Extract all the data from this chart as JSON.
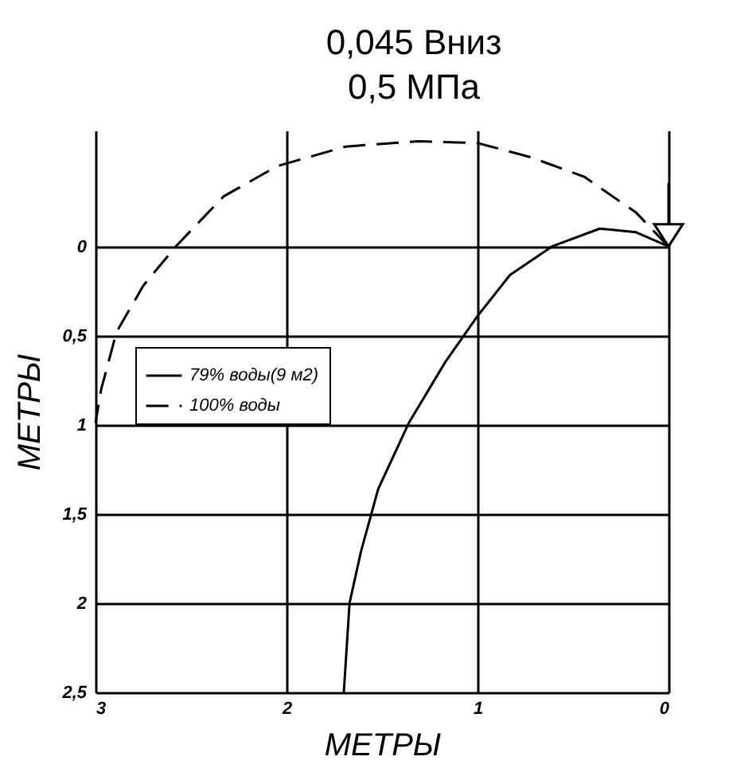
{
  "chart_data": {
    "type": "line",
    "title": "0,045 Вниз",
    "subtitle": "0,5 МПа",
    "xlabel": "МЕТРЫ",
    "ylabel": "МЕТРЫ",
    "xlim": [
      3,
      0
    ],
    "xticks": [
      3,
      2,
      1,
      0
    ],
    "ylim": [
      2.5,
      -0.65
    ],
    "yticks": [
      0,
      {
        "value": 0.5,
        "label": "0,5"
      },
      1,
      {
        "value": 1.5,
        "label": "1,5"
      },
      2,
      {
        "value": 2.5,
        "label": "2,5"
      }
    ],
    "grid": true,
    "legend": "top left",
    "marker": "none",
    "series": [
      {
        "name": "79% воды(9 м2)",
        "color": "#000000",
        "line_style": "solid",
        "x": [
          0,
          0.17,
          0.36,
          0.61,
          0.83,
          1.0,
          1.17,
          1.36,
          1.52,
          1.61,
          1.67,
          1.7
        ],
        "values": [
          0,
          -0.08,
          -0.1,
          0,
          0.16,
          0.39,
          0.65,
          0.99,
          1.36,
          1.71,
          2.0,
          2.5
        ]
      },
      {
        "name": "100% воды",
        "color": "#000000",
        "line_style": "dashed",
        "x": [
          0,
          0.17,
          0.44,
          0.72,
          1.0,
          1.31,
          1.69,
          2.05,
          2.33,
          2.58,
          2.75,
          2.89,
          2.97,
          3
        ],
        "values": [
          0,
          -0.19,
          -0.39,
          -0.5,
          -0.58,
          -0.59,
          -0.56,
          -0.45,
          -0.28,
          0,
          0.22,
          0.48,
          0.8,
          0.99
        ]
      }
    ]
  }
}
